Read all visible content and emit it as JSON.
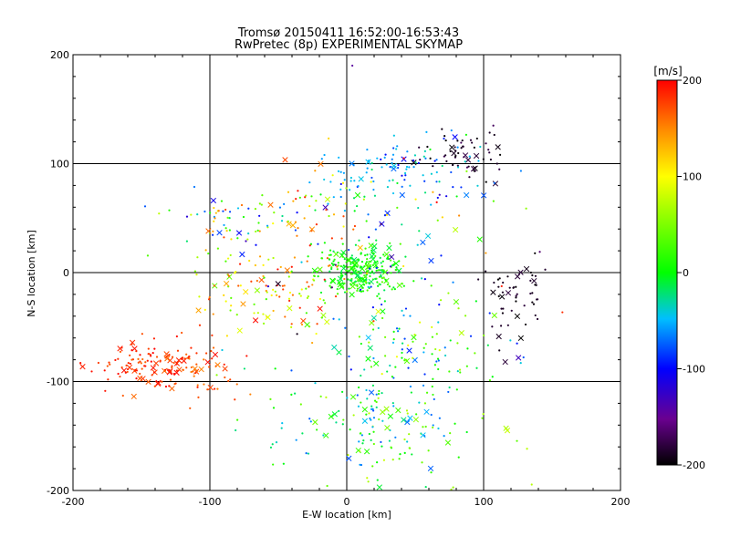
{
  "chart_data": {
    "type": "scatter",
    "title": "Tromsø 20150411 16:52:00-16:53:43",
    "subtitle": "RwPretec (8p) EXPERIMENTAL SKYMAP",
    "xlabel": "E-W location [km]",
    "ylabel": "N-S location [km]",
    "xlim": [
      -200,
      200
    ],
    "ylim": [
      -200,
      200
    ],
    "xticks": [
      "-200",
      "-100",
      "0",
      "100",
      "200"
    ],
    "yticks": [
      "-200",
      "-100",
      "0",
      "100",
      "200"
    ],
    "grid": true,
    "colorbar": {
      "label": "[m/s]",
      "range": [
        -200,
        200
      ],
      "ticks": [
        "-200",
        "-100",
        "0",
        "100",
        "200"
      ],
      "colormap": "rainbow-black-to-red"
    },
    "markers": [
      "dot",
      "cross"
    ],
    "clusters": [
      {
        "cx": 10,
        "cy": 0,
        "sx": 14,
        "sy": 12,
        "n": 260,
        "vmin": -20,
        "vmax": 40
      },
      {
        "cx": -145,
        "cy": -85,
        "sx": 18,
        "sy": 12,
        "n": 120,
        "vmin": 160,
        "vmax": 200
      },
      {
        "cx": -105,
        "cy": -90,
        "sx": 14,
        "sy": 16,
        "n": 50,
        "vmin": 150,
        "vmax": 200
      },
      {
        "cx": 85,
        "cy": 110,
        "sx": 14,
        "sy": 12,
        "n": 55,
        "vmin": -200,
        "vmax": -170
      },
      {
        "cx": 125,
        "cy": -20,
        "sx": 10,
        "sy": 20,
        "n": 55,
        "vmin": -200,
        "vmax": -180
      },
      {
        "cx": 50,
        "cy": 90,
        "sx": 25,
        "sy": 15,
        "n": 60,
        "vmin": -110,
        "vmax": -20
      },
      {
        "cx": 10,
        "cy": 90,
        "sx": 20,
        "sy": 15,
        "n": 40,
        "vmin": -60,
        "vmax": -40
      },
      {
        "cx": -85,
        "cy": 40,
        "sx": 25,
        "sy": 15,
        "n": 60,
        "vmin": -140,
        "vmax": 180
      },
      {
        "cx": -60,
        "cy": -20,
        "sx": 25,
        "sy": 20,
        "n": 110,
        "vmin": 20,
        "vmax": 200
      },
      {
        "cx": 25,
        "cy": -130,
        "sx": 40,
        "sy": 35,
        "n": 200,
        "vmin": -80,
        "vmax": 80
      },
      {
        "cx": 45,
        "cy": -60,
        "sx": 30,
        "sy": 25,
        "n": 90,
        "vmin": -100,
        "vmax": 100
      },
      {
        "cx": -20,
        "cy": 60,
        "sx": 30,
        "sy": 25,
        "n": 70,
        "vmin": -120,
        "vmax": 200
      },
      {
        "cx": 30,
        "cy": 30,
        "sx": 50,
        "sy": 50,
        "n": 80,
        "vmin": -200,
        "vmax": 200
      }
    ]
  }
}
